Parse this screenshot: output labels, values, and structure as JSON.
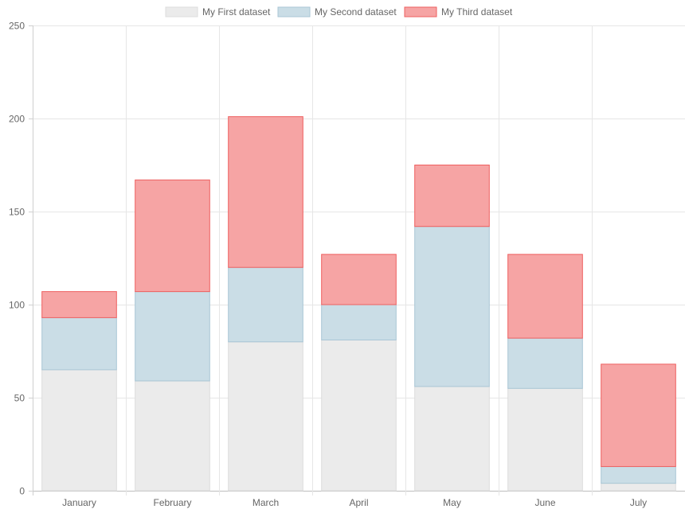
{
  "chart_data": {
    "type": "bar",
    "stacked": true,
    "categories": [
      "January",
      "February",
      "March",
      "April",
      "May",
      "June",
      "July"
    ],
    "series": [
      {
        "name": "My First dataset",
        "values": [
          65,
          59,
          80,
          81,
          56,
          55,
          4
        ],
        "fill": "#ebebeb",
        "stroke": "#dcdcdc"
      },
      {
        "name": "My Second dataset",
        "values": [
          28,
          48,
          40,
          19,
          86,
          27,
          9
        ],
        "fill": "#cadde6",
        "stroke": "#a9c6d5"
      },
      {
        "name": "My Third dataset",
        "values": [
          14,
          60,
          81,
          27,
          33,
          45,
          55
        ],
        "fill": "#f6a4a4",
        "stroke": "#ee5f5f"
      }
    ],
    "y_ticks": [
      0,
      50,
      100,
      150,
      200,
      250
    ],
    "ylim": [
      0,
      250
    ],
    "grid": true,
    "legend_position": "top",
    "xlabel": "",
    "ylabel": "",
    "title": ""
  }
}
